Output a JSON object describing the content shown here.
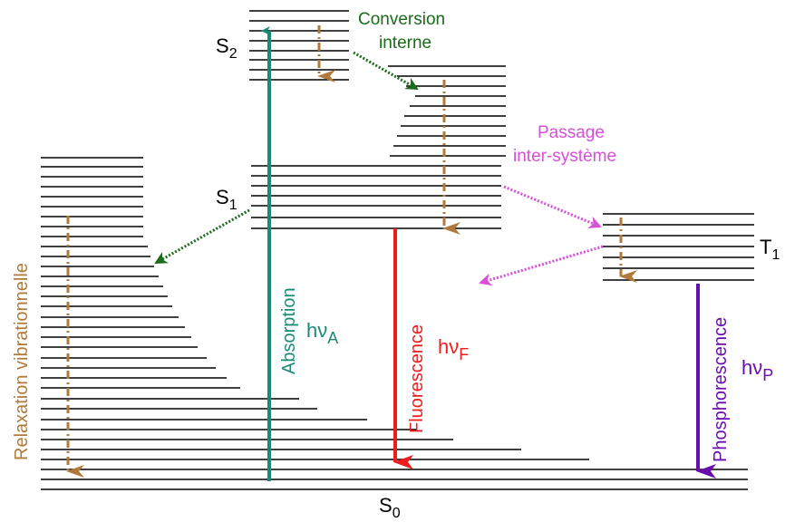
{
  "states": {
    "s0": {
      "main": "S",
      "sub": "0"
    },
    "s1": {
      "main": "S",
      "sub": "1"
    },
    "s2": {
      "main": "S",
      "sub": "2"
    },
    "t1": {
      "main": "T",
      "sub": "1"
    }
  },
  "processes": {
    "absorption": {
      "label": "Absorption",
      "photon_main": "hν",
      "photon_sub": "A"
    },
    "fluorescence": {
      "label": "Fluorescence",
      "photon_main": "hν",
      "photon_sub": "F"
    },
    "phosphorescence": {
      "label": "Phosphorescence",
      "photon_main": "hν",
      "photon_sub": "P"
    },
    "internal_conversion": {
      "line1": "Conversion",
      "line2": "interne"
    },
    "intersystem_crossing": {
      "line1": "Passage",
      "line2": "inter-système"
    },
    "vibrational_relaxation": {
      "label": "Relaxation vibrationnelle"
    }
  },
  "colors": {
    "absorption": "#1a8a77",
    "fluorescence": "#ee1c1c",
    "phosphorescence": "#6a0dad",
    "internal_conversion": "#1a6b1a",
    "intersystem_crossing": "#d84fd8",
    "vibrational_relaxation": "#b07a3a",
    "level": "#000000"
  }
}
